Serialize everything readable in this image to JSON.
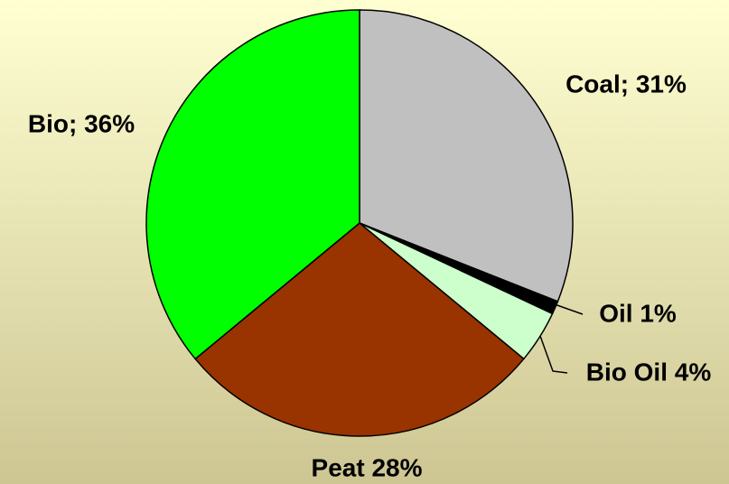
{
  "chart_data": {
    "type": "pie",
    "values": [
      31,
      1,
      4,
      28,
      36
    ],
    "value_labels": [
      "Coal; 31%",
      "Oil 1%",
      "Bio Oil 4%",
      "Peat 28%",
      "Bio; 36%"
    ],
    "colors": [
      "#c0c0c0",
      "#000000",
      "#ccffcc",
      "#993300",
      "#00ff00"
    ]
  }
}
